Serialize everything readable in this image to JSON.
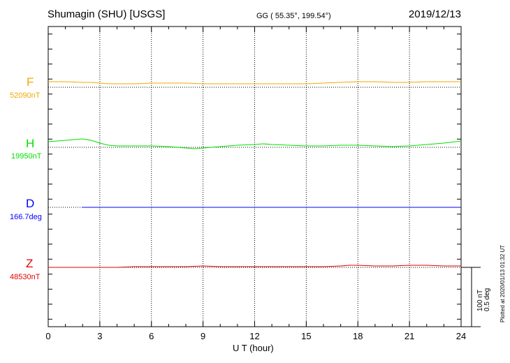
{
  "header": {
    "station": "Shumagin (SHU)  [USGS]",
    "coords": "GG ( 55.35°, 199.54°)",
    "date": "2019/12/13"
  },
  "footer": {
    "plotted": "Plotted at 2020/01/13 01:32 UT"
  },
  "scale": {
    "nt": "100 nT",
    "deg": "0.5 deg"
  },
  "colors": {
    "F": "#f0a800",
    "H": "#00e000",
    "D": "#0000ff",
    "Z": "#e00000"
  },
  "chart_data": {
    "type": "line",
    "xlabel": "U T (hour)",
    "xlim": [
      0,
      24
    ],
    "xticks": [
      "0",
      "3",
      "6",
      "9",
      "12",
      "15",
      "18",
      "21",
      "24"
    ],
    "series": [
      {
        "name": "F",
        "baseline_label": "52090nT",
        "x": [
          0,
          1,
          2,
          2.5,
          3,
          3.5,
          4,
          5,
          6,
          7,
          8,
          9,
          10,
          11,
          12,
          13,
          14,
          15,
          16,
          17,
          18,
          19,
          20,
          21,
          22,
          23,
          24
        ],
        "offset": [
          8,
          8,
          7,
          7,
          6,
          5,
          5,
          5,
          6,
          6,
          6,
          5,
          5,
          5,
          5,
          5,
          5,
          5,
          6,
          7,
          8,
          8,
          7,
          7,
          8,
          8,
          8
        ]
      },
      {
        "name": "H",
        "baseline_label": "19950nT",
        "x": [
          0,
          0.5,
          1,
          1.5,
          2,
          2.5,
          3,
          3.5,
          4,
          5,
          6,
          7,
          8,
          8.5,
          9,
          10,
          11,
          12,
          12.5,
          13,
          14,
          15,
          16,
          17,
          18,
          19,
          20,
          21,
          22,
          23,
          24
        ],
        "offset": [
          8,
          9,
          10,
          11,
          12,
          10,
          6,
          3,
          2,
          2,
          2,
          1,
          -1,
          -2,
          -1,
          1,
          3,
          4,
          5,
          4,
          3,
          2,
          2,
          3,
          3,
          2,
          1,
          2,
          4,
          6,
          9
        ]
      },
      {
        "name": "D",
        "baseline_label": "166.7deg",
        "x": [
          1.95,
          6,
          12,
          18,
          24
        ],
        "offset": [
          0,
          0,
          0,
          0,
          0
        ]
      },
      {
        "name": "Z",
        "baseline_label": "48530nT",
        "x": [
          0,
          1,
          2,
          3,
          4,
          5,
          6,
          7,
          8,
          9,
          10,
          11,
          12,
          13,
          14,
          15,
          16,
          17,
          17.5,
          18,
          19,
          20,
          21,
          22,
          23,
          24
        ],
        "offset": [
          0,
          0,
          0,
          0,
          0,
          1,
          1,
          1,
          1,
          2,
          1,
          1,
          1,
          1,
          1,
          1,
          1,
          2,
          3,
          3,
          2,
          2,
          3,
          3,
          2,
          2
        ]
      }
    ]
  }
}
